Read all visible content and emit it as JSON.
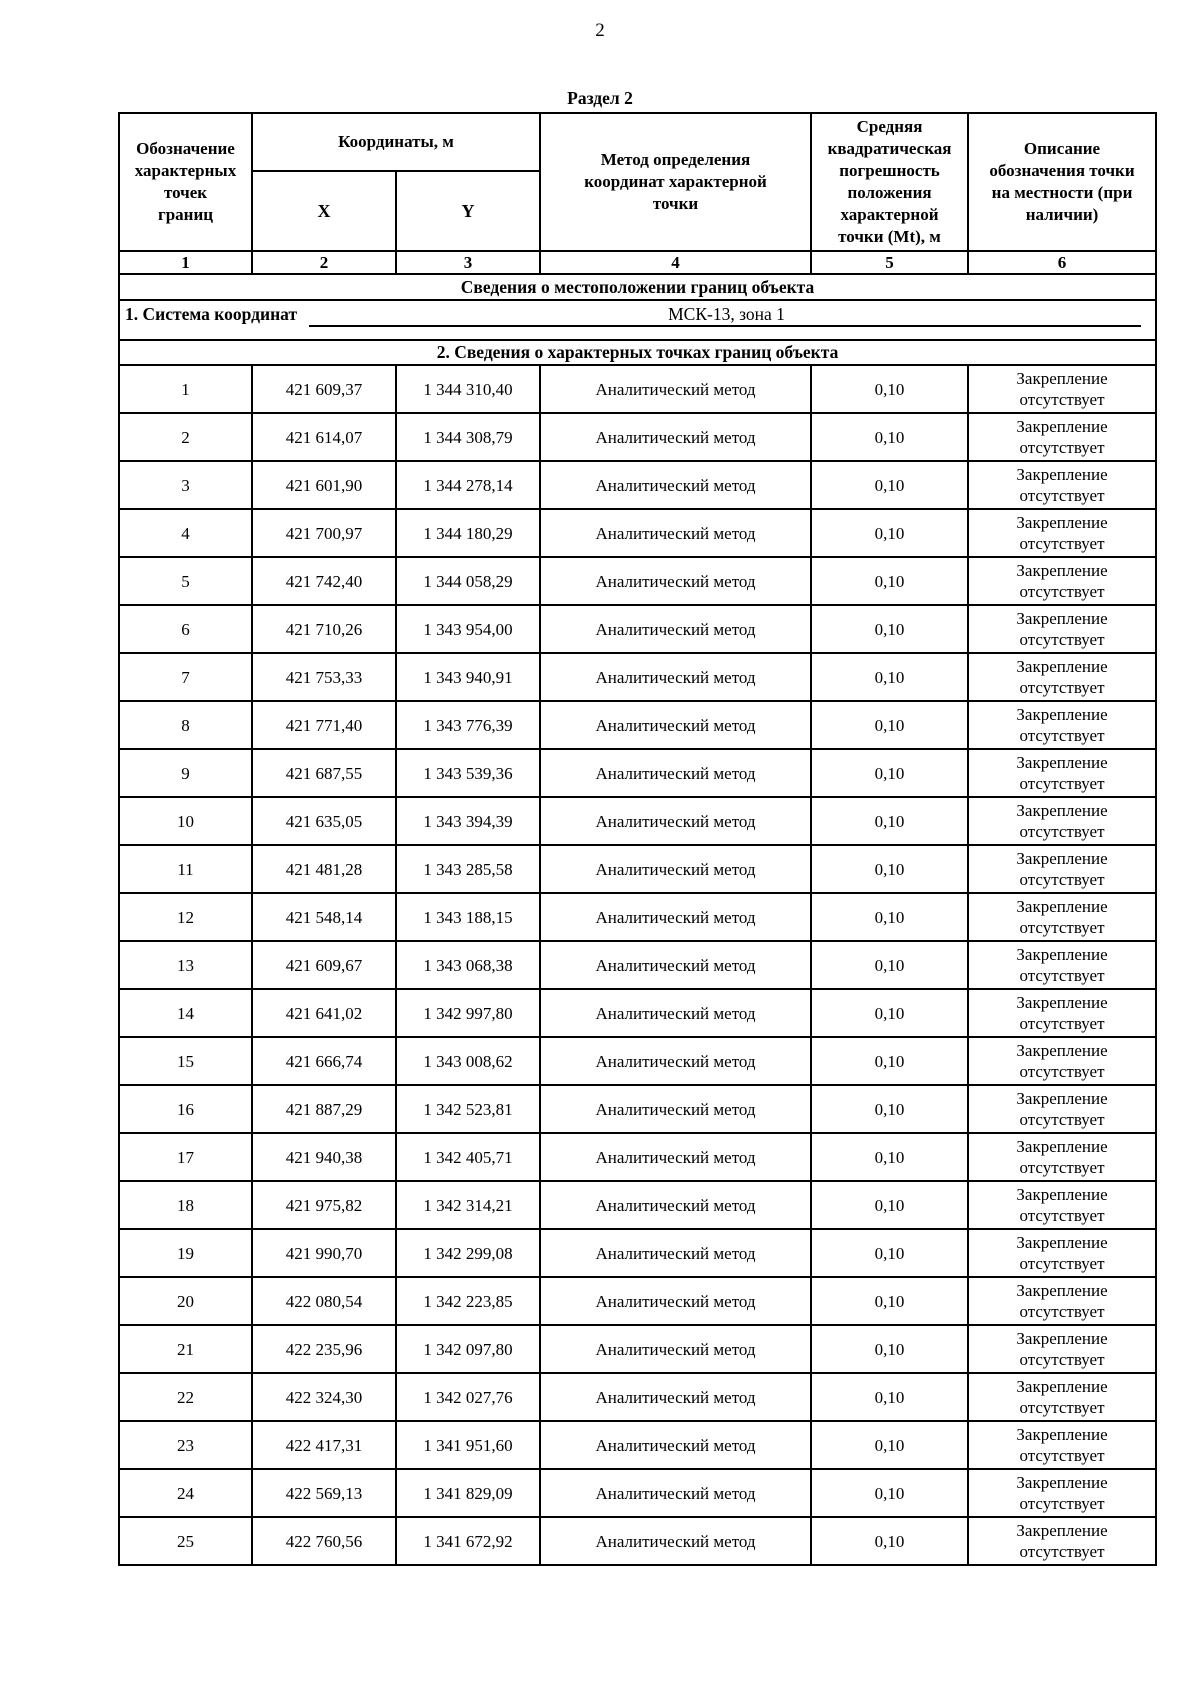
{
  "page": {
    "number": "2",
    "section_title": "Раздел 2"
  },
  "location": {
    "title": "Сведения о местоположении границ объекта",
    "coord_system_label": "1. Система координат",
    "coord_system_value": "МСК-13, зона 1"
  },
  "points": {
    "title": "2. Сведения о характерных точках границ объекта",
    "headers": {
      "designation": "Обозначение\nхарактерных\nточек\nграниц",
      "coordinates": "Координаты, м",
      "x": "X",
      "y": "Y",
      "method": "Метод определения\nкоординат характерной\nточки",
      "error": "Средняя\nквадратическая\nпогрешность\nположения\nхарактерной\nточки (Mt), м",
      "description": "Описание\nобозначения точки\nна местности (при\nналичии)"
    },
    "column_numbers": [
      "1",
      "2",
      "3",
      "4",
      "5",
      "6"
    ],
    "rows": [
      {
        "n": "1",
        "x": "421 609,37",
        "y": "1 344 310,40",
        "method": "Аналитический метод",
        "mt": "0,10",
        "desc": "Закрепление\nотсутствует"
      },
      {
        "n": "2",
        "x": "421 614,07",
        "y": "1 344 308,79",
        "method": "Аналитический метод",
        "mt": "0,10",
        "desc": "Закрепление\nотсутствует"
      },
      {
        "n": "3",
        "x": "421 601,90",
        "y": "1 344 278,14",
        "method": "Аналитический метод",
        "mt": "0,10",
        "desc": "Закрепление\nотсутствует"
      },
      {
        "n": "4",
        "x": "421 700,97",
        "y": "1 344 180,29",
        "method": "Аналитический метод",
        "mt": "0,10",
        "desc": "Закрепление\nотсутствует"
      },
      {
        "n": "5",
        "x": "421 742,40",
        "y": "1 344 058,29",
        "method": "Аналитический метод",
        "mt": "0,10",
        "desc": "Закрепление\nотсутствует"
      },
      {
        "n": "6",
        "x": "421 710,26",
        "y": "1 343 954,00",
        "method": "Аналитический метод",
        "mt": "0,10",
        "desc": "Закрепление\nотсутствует"
      },
      {
        "n": "7",
        "x": "421 753,33",
        "y": "1 343 940,91",
        "method": "Аналитический метод",
        "mt": "0,10",
        "desc": "Закрепление\nотсутствует"
      },
      {
        "n": "8",
        "x": "421 771,40",
        "y": "1 343 776,39",
        "method": "Аналитический метод",
        "mt": "0,10",
        "desc": "Закрепление\nотсутствует"
      },
      {
        "n": "9",
        "x": "421 687,55",
        "y": "1 343 539,36",
        "method": "Аналитический метод",
        "mt": "0,10",
        "desc": "Закрепление\nотсутствует"
      },
      {
        "n": "10",
        "x": "421 635,05",
        "y": "1 343 394,39",
        "method": "Аналитический метод",
        "mt": "0,10",
        "desc": "Закрепление\nотсутствует"
      },
      {
        "n": "11",
        "x": "421 481,28",
        "y": "1 343 285,58",
        "method": "Аналитический метод",
        "mt": "0,10",
        "desc": "Закрепление\nотсутствует"
      },
      {
        "n": "12",
        "x": "421 548,14",
        "y": "1 343 188,15",
        "method": "Аналитический метод",
        "mt": "0,10",
        "desc": "Закрепление\nотсутствует"
      },
      {
        "n": "13",
        "x": "421 609,67",
        "y": "1 343 068,38",
        "method": "Аналитический метод",
        "mt": "0,10",
        "desc": "Закрепление\nотсутствует"
      },
      {
        "n": "14",
        "x": "421 641,02",
        "y": "1 342 997,80",
        "method": "Аналитический метод",
        "mt": "0,10",
        "desc": "Закрепление\nотсутствует"
      },
      {
        "n": "15",
        "x": "421 666,74",
        "y": "1 343 008,62",
        "method": "Аналитический метод",
        "mt": "0,10",
        "desc": "Закрепление\nотсутствует"
      },
      {
        "n": "16",
        "x": "421 887,29",
        "y": "1 342 523,81",
        "method": "Аналитический метод",
        "mt": "0,10",
        "desc": "Закрепление\nотсутствует"
      },
      {
        "n": "17",
        "x": "421 940,38",
        "y": "1 342 405,71",
        "method": "Аналитический метод",
        "mt": "0,10",
        "desc": "Закрепление\nотсутствует"
      },
      {
        "n": "18",
        "x": "421 975,82",
        "y": "1 342 314,21",
        "method": "Аналитический метод",
        "mt": "0,10",
        "desc": "Закрепление\nотсутствует"
      },
      {
        "n": "19",
        "x": "421 990,70",
        "y": "1 342 299,08",
        "method": "Аналитический метод",
        "mt": "0,10",
        "desc": "Закрепление\nотсутствует"
      },
      {
        "n": "20",
        "x": "422 080,54",
        "y": "1 342 223,85",
        "method": "Аналитический метод",
        "mt": "0,10",
        "desc": "Закрепление\nотсутствует"
      },
      {
        "n": "21",
        "x": "422 235,96",
        "y": "1 342 097,80",
        "method": "Аналитический метод",
        "mt": "0,10",
        "desc": "Закрепление\nотсутствует"
      },
      {
        "n": "22",
        "x": "422 324,30",
        "y": "1 342 027,76",
        "method": "Аналитический метод",
        "mt": "0,10",
        "desc": "Закрепление\nотсутствует"
      },
      {
        "n": "23",
        "x": "422 417,31",
        "y": "1 341 951,60",
        "method": "Аналитический метод",
        "mt": "0,10",
        "desc": "Закрепление\nотсутствует"
      },
      {
        "n": "24",
        "x": "422 569,13",
        "y": "1 341 829,09",
        "method": "Аналитический метод",
        "mt": "0,10",
        "desc": "Закрепление\nотсутствует"
      },
      {
        "n": "25",
        "x": "422 760,56",
        "y": "1 341 672,92",
        "method": "Аналитический метод",
        "mt": "0,10",
        "desc": "Закрепление\nотсутствует"
      }
    ]
  }
}
